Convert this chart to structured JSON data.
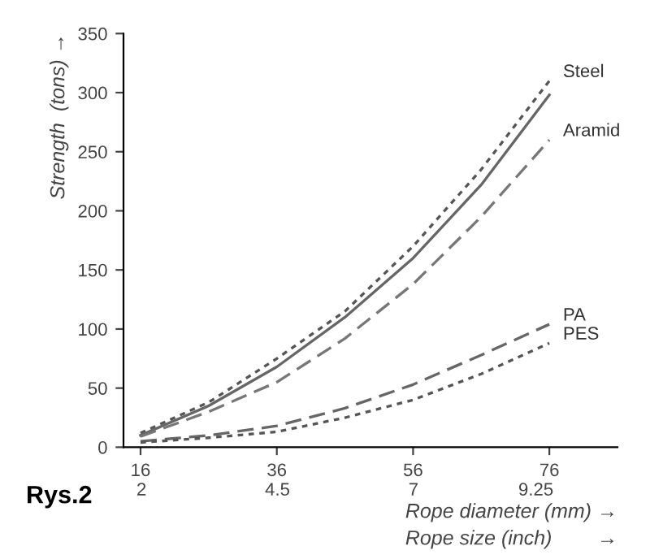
{
  "chart_data": {
    "type": "line",
    "xlabel": "Rope diameter (mm) →",
    "x2label": "Rope size (inch)        →",
    "ylabel": "Strength  (tons) →",
    "x2lim": [
      1.67,
      10.75
    ],
    "x2ticks": [
      2,
      4.5,
      7,
      9.25
    ],
    "annotations": [
      "Rys.2"
    ],
    "x": [
      16,
      26,
      36,
      46,
      56,
      66,
      76
    ],
    "xlim": [
      13.5,
      86
    ],
    "xticks": [
      16,
      36,
      56,
      76
    ],
    "ylim": [
      0,
      350
    ],
    "yticks": [
      0,
      50,
      100,
      150,
      200,
      250,
      300,
      350
    ],
    "grid": false,
    "legend": false,
    "series": [
      {
        "name": "Steel",
        "color": "#555555",
        "line_style": "dotted",
        "values": [
          12,
          38,
          75,
          115,
          170,
          235,
          310
        ]
      },
      {
        "color": "#666666",
        "line_style": "solid",
        "values": [
          10,
          35,
          68,
          110,
          160,
          222,
          298
        ]
      },
      {
        "name": "Aramid",
        "color": "#777777",
        "line_style": "dashed",
        "values": [
          9,
          30,
          55,
          92,
          138,
          195,
          260
        ]
      },
      {
        "name": "PA",
        "color": "#666666",
        "line_style": "dashed",
        "values": [
          5,
          10,
          18,
          33,
          53,
          78,
          104
        ]
      },
      {
        "name": "PES",
        "color": "#555555",
        "line_style": "dotted",
        "values": [
          4,
          8,
          13,
          25,
          40,
          62,
          88
        ]
      }
    ]
  }
}
